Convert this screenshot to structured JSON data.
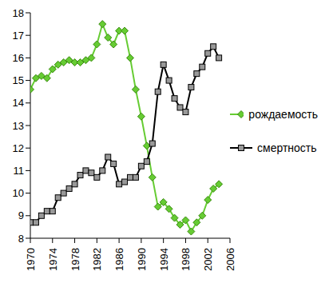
{
  "chart_data": {
    "type": "line",
    "x": [
      1970,
      1971,
      1972,
      1973,
      1974,
      1975,
      1976,
      1977,
      1978,
      1979,
      1980,
      1981,
      1982,
      1983,
      1984,
      1985,
      1986,
      1987,
      1988,
      1989,
      1990,
      1991,
      1992,
      1993,
      1994,
      1995,
      1996,
      1997,
      1998,
      1999,
      2000,
      2001,
      2002,
      2003,
      2004
    ],
    "series": [
      {
        "name": "рождаемость",
        "color": "#66cc33",
        "marker": "diamond",
        "values": [
          14.6,
          15.1,
          15.2,
          15.1,
          15.5,
          15.7,
          15.8,
          15.9,
          15.8,
          15.8,
          15.9,
          16.0,
          16.6,
          17.5,
          16.9,
          16.6,
          17.2,
          17.2,
          16.0,
          14.6,
          13.4,
          12.1,
          10.7,
          9.4,
          9.6,
          9.3,
          8.9,
          8.6,
          8.8,
          8.3,
          8.7,
          9.0,
          9.7,
          10.2,
          10.4
        ]
      },
      {
        "name": "смертность",
        "color": "#000000",
        "marker": "square",
        "values": [
          8.7,
          8.7,
          9.0,
          9.2,
          9.2,
          9.8,
          10.0,
          10.2,
          10.4,
          10.8,
          11.0,
          10.9,
          10.7,
          11.0,
          11.6,
          11.3,
          10.4,
          10.5,
          10.7,
          10.7,
          11.2,
          11.4,
          12.2,
          14.5,
          15.7,
          15.0,
          14.2,
          13.8,
          13.6,
          14.7,
          15.3,
          15.6,
          16.2,
          16.5,
          16.0
        ]
      }
    ],
    "xlim": [
      1970,
      2006
    ],
    "xticks": [
      1970,
      1974,
      1978,
      1982,
      1986,
      1990,
      1994,
      1998,
      2002,
      2006
    ],
    "ylim": [
      8,
      18
    ],
    "yticks": [
      8,
      9,
      10,
      11,
      12,
      13,
      14,
      15,
      16,
      17,
      18
    ],
    "grid": false,
    "legend": "right"
  }
}
